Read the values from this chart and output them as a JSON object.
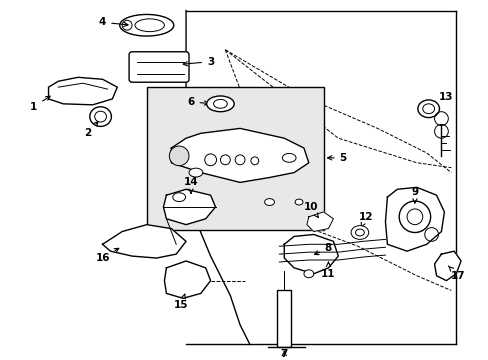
{
  "background_color": "#ffffff",
  "line_color": "#000000",
  "box_fill": "#e8e8e8",
  "figsize": [
    4.89,
    3.6
  ],
  "dpi": 100
}
